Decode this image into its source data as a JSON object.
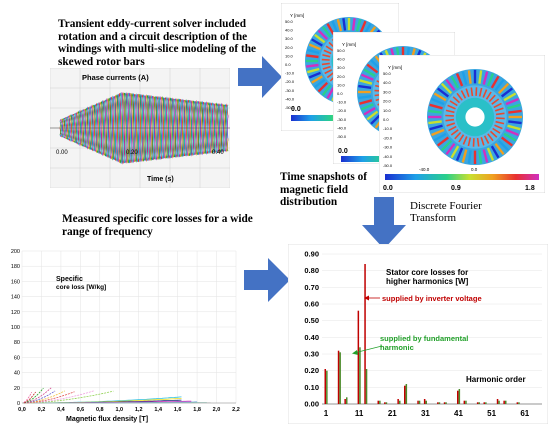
{
  "captions": {
    "solver": "Transient eddy-current solver included rotation and a circuit description of the windings with multi-slice modeling of the skewed rotor bars",
    "snapshots": "Time snapshots of magnetic field distribution",
    "dft": "Discrete Fourier Transform",
    "measured": "Measured specific core losses for a wide range of frequency"
  },
  "phase_chart": {
    "title": "Phase currents (A)",
    "xlabel": "Time (s)",
    "xticks": [
      "0.00",
      "0.20",
      "0.40"
    ]
  },
  "field_maps": {
    "axis_label": "Y [mm]",
    "scale_min": "0.0",
    "scale_mid": "0.9",
    "scale_max": "1.8",
    "yticks": [
      "50.0",
      "40.0",
      "30.0",
      "20.0",
      "10.0",
      "0.0",
      "-10.0",
      "-20.0",
      "-30.0",
      "-40.0",
      "-50.0"
    ],
    "xticks": [
      "-40.0",
      "0.0"
    ]
  },
  "loss_chart": {
    "ylabel": "Specific core loss [W/kg]",
    "ylabel_line1": "Specific",
    "ylabel_line2": "core loss [W/kg]",
    "xlabel": "Magnetic flux density [T]",
    "yticks": [
      "200",
      "180",
      "160",
      "140",
      "120",
      "100",
      "80",
      "60",
      "40",
      "20",
      "0"
    ],
    "xticks": [
      "0,0",
      "0,2",
      "0,4",
      "0,6",
      "0,8",
      "1,0",
      "1,2",
      "1,4",
      "1,6",
      "1,8",
      "2,0",
      "2,2"
    ]
  },
  "chart_data": {
    "type": "bar",
    "title": "Stator core losses for higher harmonics [W]",
    "xlabel": "Harmonic order",
    "ylim": [
      0,
      0.9
    ],
    "yticks": [
      "0.90",
      "0.80",
      "0.70",
      "0.60",
      "0.50",
      "0.40",
      "0.30",
      "0.20",
      "0.10",
      "0.00"
    ],
    "xticks": [
      "1",
      "11",
      "21",
      "31",
      "41",
      "51",
      "61"
    ],
    "annotations": [
      "supplied by inverter voltage",
      "supplied by fundamental harmonic"
    ],
    "harmonics": [
      1,
      5,
      7,
      11,
      13,
      17,
      19,
      23,
      25,
      29,
      31,
      35,
      37,
      41,
      43,
      47,
      49,
      53,
      55,
      59
    ],
    "series": [
      {
        "name": "supplied by inverter voltage",
        "color": "#c00000",
        "values": [
          0.21,
          0.32,
          0.03,
          0.56,
          0.84,
          0.02,
          0.01,
          0.03,
          0.11,
          0.02,
          0.03,
          0.01,
          0.01,
          0.08,
          0.02,
          0.01,
          0.01,
          0.03,
          0.02,
          0.01
        ]
      },
      {
        "name": "supplied by fundamental harmonic",
        "color": "#4a8a2a",
        "values": [
          0.2,
          0.31,
          0.04,
          0.34,
          0.21,
          0.02,
          0.01,
          0.02,
          0.12,
          0.02,
          0.02,
          0.01,
          0.01,
          0.09,
          0.02,
          0.01,
          0.01,
          0.02,
          0.02,
          0.01
        ]
      }
    ]
  },
  "colors": {
    "arrow": "#4472c4",
    "inverter": "#c00000",
    "fundamental": "#22a02a"
  }
}
